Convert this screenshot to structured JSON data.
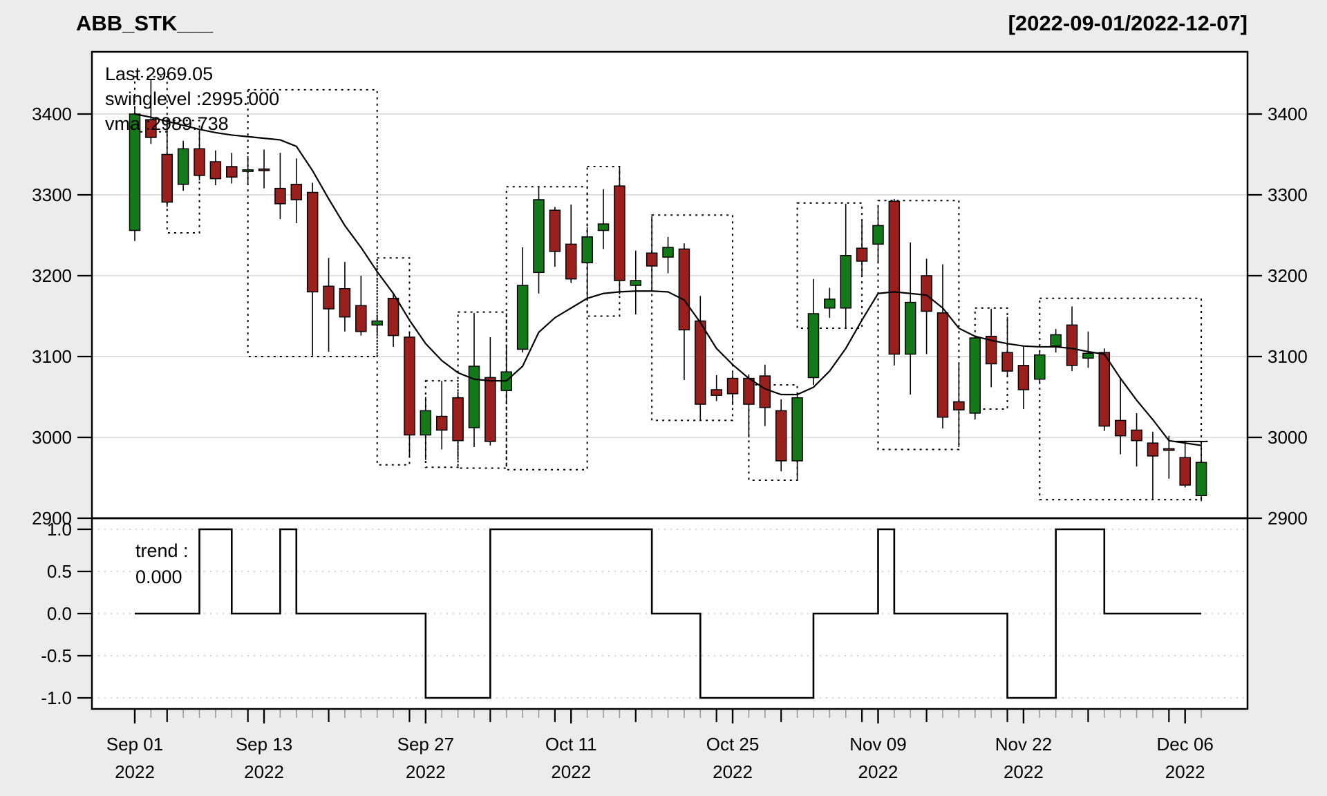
{
  "header": {
    "title": "ABB_STK___",
    "date_range": "[2022-09-01/2022-12-07]"
  },
  "legend": {
    "last_label": "Last 2969.05",
    "swinglevel_label": "swinglevel :2995.000",
    "vma_label": "vma :2989.738"
  },
  "trend_legend": {
    "line1": "trend :",
    "line2": "0.000"
  },
  "colors": {
    "up": "#147a19",
    "down": "#99201c",
    "candle_border": "#000000",
    "line": "#000000",
    "grid": "#d6d6d6",
    "trend_grid": "#c8c8c8",
    "bg": "#ececec",
    "plot_bg": "#ffffff",
    "last_text": "#1d7a1d",
    "minor_tick": "#999999"
  },
  "chart_data": {
    "type": "candlestick+steps",
    "title": "ABB_STK___",
    "subtitle": "[2022-09-01/2022-12-07]",
    "y_axis": {
      "ticks": [
        2900,
        3000,
        3100,
        3200,
        3300,
        3400
      ],
      "min": 2900,
      "max": 3477,
      "gridlines": [
        3000,
        3100,
        3200,
        3300,
        3400
      ]
    },
    "trend_axis": {
      "ticks": [
        1.0,
        0.5,
        0.0,
        -0.5,
        -1.0
      ],
      "min": -1.0,
      "max": 1.0
    },
    "x_labels": [
      {
        "index": 1,
        "line1": "Sep 01",
        "line2": "2022"
      },
      {
        "index": 9,
        "line1": "Sep 13",
        "line2": "2022"
      },
      {
        "index": 19,
        "line1": "Sep 27",
        "line2": "2022"
      },
      {
        "index": 28,
        "line1": "Oct 11",
        "line2": "2022"
      },
      {
        "index": 38,
        "line1": "Oct 25",
        "line2": "2022"
      },
      {
        "index": 47,
        "line1": "Nov 09",
        "line2": "2022"
      },
      {
        "index": 56,
        "line1": "Nov 22",
        "line2": "2022"
      },
      {
        "index": 66,
        "line1": "Dec 06",
        "line2": "2022"
      }
    ],
    "major_tick_indices": [
      3,
      8,
      13,
      18,
      23,
      27,
      32,
      37,
      41,
      46,
      50,
      55,
      60,
      65
    ],
    "candles": [
      [
        3256,
        3408,
        3243,
        3400
      ],
      [
        3393,
        3443,
        3363,
        3371
      ],
      [
        3350,
        3392,
        3285,
        3291
      ],
      [
        3313,
        3367,
        3305,
        3357
      ],
      [
        3357,
        3380,
        3318,
        3324
      ],
      [
        3341,
        3355,
        3312,
        3320
      ],
      [
        3335,
        3352,
        3314,
        3322
      ],
      [
        3329,
        3348,
        3313,
        3331
      ],
      [
        3332,
        3356,
        3308,
        3330
      ],
      [
        3308,
        3352,
        3270,
        3289
      ],
      [
        3313,
        3345,
        3265,
        3294
      ],
      [
        3303,
        3315,
        3101,
        3180
      ],
      [
        3187,
        3222,
        3106,
        3159
      ],
      [
        3184,
        3217,
        3131,
        3149
      ],
      [
        3163,
        3200,
        3126,
        3131
      ],
      [
        3139,
        3152,
        3128,
        3144
      ],
      [
        3172,
        3177,
        3112,
        3126
      ],
      [
        3124,
        3130,
        2977,
        3003
      ],
      [
        3003,
        3050,
        2972,
        3033
      ],
      [
        3026,
        3070,
        2985,
        3009
      ],
      [
        3049,
        3055,
        2975,
        2996
      ],
      [
        3012,
        3154,
        2988,
        3088
      ],
      [
        3074,
        3124,
        2990,
        2995
      ],
      [
        3058,
        3115,
        3041,
        3081
      ],
      [
        3109,
        3235,
        3105,
        3188
      ],
      [
        3204,
        3310,
        3178,
        3294
      ],
      [
        3281,
        3285,
        3211,
        3230
      ],
      [
        3239,
        3288,
        3191,
        3196
      ],
      [
        3216,
        3260,
        3172,
        3248
      ],
      [
        3256,
        3307,
        3233,
        3264
      ],
      [
        3311,
        3334,
        3177,
        3194
      ],
      [
        3188,
        3231,
        3152,
        3194
      ],
      [
        3228,
        3274,
        3182,
        3212
      ],
      [
        3223,
        3248,
        3203,
        3235
      ],
      [
        3233,
        3240,
        3071,
        3133
      ],
      [
        3144,
        3175,
        3021,
        3041
      ],
      [
        3059,
        3077,
        3045,
        3052
      ],
      [
        3073,
        3080,
        3040,
        3054
      ],
      [
        3073,
        3078,
        3000,
        3041
      ],
      [
        3076,
        3090,
        3014,
        3037
      ],
      [
        3033,
        3047,
        2958,
        2971
      ],
      [
        2971,
        3052,
        2948,
        3049
      ],
      [
        3074,
        3196,
        3065,
        3153
      ],
      [
        3160,
        3185,
        3148,
        3171
      ],
      [
        3160,
        3289,
        3135,
        3225
      ],
      [
        3234,
        3268,
        3200,
        3218
      ],
      [
        3239,
        3287,
        3215,
        3262
      ],
      [
        3292,
        3295,
        3089,
        3103
      ],
      [
        3103,
        3241,
        3053,
        3167
      ],
      [
        3200,
        3221,
        3103,
        3156
      ],
      [
        3154,
        3214,
        3011,
        3025
      ],
      [
        3044,
        3091,
        2988,
        3034
      ],
      [
        3030,
        3126,
        3022,
        3123
      ],
      [
        3125,
        3159,
        3062,
        3091
      ],
      [
        3105,
        3149,
        3075,
        3082
      ],
      [
        3089,
        3112,
        3035,
        3059
      ],
      [
        3072,
        3108,
        3066,
        3102
      ],
      [
        3113,
        3134,
        3105,
        3127
      ],
      [
        3139,
        3162,
        3082,
        3089
      ],
      [
        3098,
        3131,
        3086,
        3104
      ],
      [
        3105,
        3110,
        3008,
        3014
      ],
      [
        3021,
        3073,
        2979,
        3002
      ],
      [
        3009,
        3030,
        2964,
        2996
      ],
      [
        2993,
        3007,
        2923,
        2977
      ],
      [
        2986,
        3002,
        2949,
        2984
      ],
      [
        2975,
        2996,
        2938,
        2941
      ],
      [
        2928,
        2993,
        2921,
        2969.05
      ]
    ],
    "vma": [
      3400,
      3396,
      3391,
      3386,
      3381,
      3377,
      3374,
      3372,
      3370,
      3368,
      3360,
      3330,
      3295,
      3262,
      3235,
      3205,
      3178,
      3145,
      3116,
      3095,
      3080,
      3072,
      3070,
      3070,
      3088,
      3130,
      3148,
      3160,
      3172,
      3178,
      3180,
      3181,
      3181,
      3180,
      3170,
      3142,
      3110,
      3090,
      3073,
      3060,
      3053,
      3053,
      3062,
      3082,
      3110,
      3145,
      3178,
      3180,
      3178,
      3176,
      3160,
      3135,
      3125,
      3120,
      3116,
      3113,
      3112,
      3112,
      3110,
      3106,
      3103,
      3073,
      3046,
      3022,
      2996,
      2993,
      2990
    ],
    "trend": [
      0,
      0,
      0,
      0,
      1,
      1,
      0,
      0,
      0,
      1,
      0,
      0,
      0,
      0,
      0,
      0,
      0,
      0,
      -1,
      -1,
      -1,
      -1,
      1,
      1,
      1,
      1,
      1,
      1,
      1,
      1,
      1,
      1,
      0,
      0,
      0,
      -1,
      -1,
      -1,
      -1,
      -1,
      -1,
      -1,
      0,
      0,
      0,
      0,
      1,
      0,
      0,
      0,
      0,
      0,
      0,
      0,
      -1,
      -1,
      -1,
      1,
      1,
      1,
      0,
      0,
      0,
      0,
      0,
      0,
      0
    ],
    "swing_boxes": [
      [
        1,
        3,
        3378,
        3446
      ],
      [
        3,
        5,
        3253,
        3392
      ],
      [
        8,
        16,
        3100,
        3430
      ],
      [
        16,
        18,
        2966,
        3222
      ],
      [
        19,
        21,
        2963,
        3070
      ],
      [
        21,
        24,
        2962,
        3155
      ],
      [
        24,
        29,
        2960,
        3310
      ],
      [
        29,
        31,
        3150,
        3335
      ],
      [
        33,
        38,
        3021,
        3275
      ],
      [
        39,
        42,
        2947,
        3065
      ],
      [
        42,
        46,
        3135,
        3290
      ],
      [
        47,
        52,
        2985,
        3293
      ],
      [
        53,
        55,
        3035,
        3160
      ],
      [
        57,
        67,
        2923,
        3172
      ]
    ],
    "swing_segment": {
      "start_candle": 65.4,
      "end_candle": 67.4,
      "level": 2995
    },
    "last_value": 2969.05,
    "swinglevel_value": 2995.0,
    "vma_value": 2989.738,
    "trend_value": 0.0,
    "legend_position": "top-left",
    "grid": true
  }
}
